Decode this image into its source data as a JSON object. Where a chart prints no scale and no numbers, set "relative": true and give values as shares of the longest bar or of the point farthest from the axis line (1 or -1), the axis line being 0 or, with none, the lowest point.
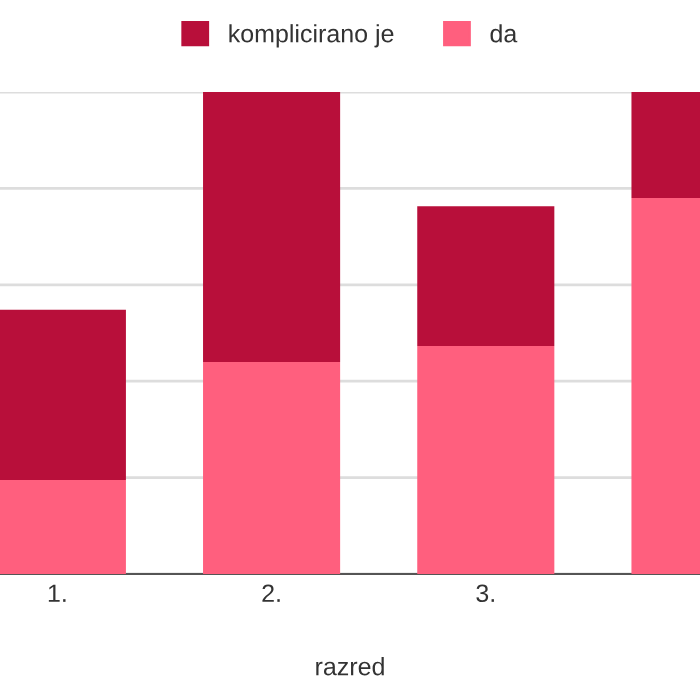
{
  "chart_data": {
    "type": "bar",
    "stacked": true,
    "relative": true,
    "xlabel": "razred",
    "categories": [
      "1.",
      "2.",
      "3.",
      null
    ],
    "series": [
      {
        "name": "da",
        "color": "#ff5f7e",
        "values": [
          0.195,
          0.44,
          0.473,
          0.78
        ]
      },
      {
        "name": "komplicirano je",
        "color": "#b80f3a",
        "values": [
          0.353,
          0.56,
          0.29,
          0.22
        ]
      }
    ],
    "grid": "y",
    "legend": "top"
  }
}
